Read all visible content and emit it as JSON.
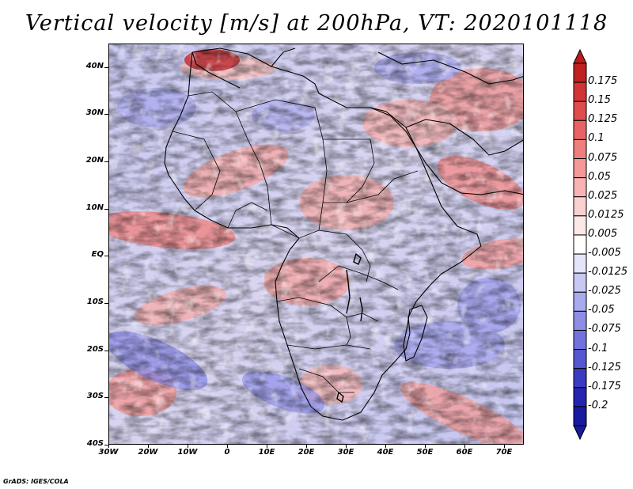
{
  "title": "Vertical velocity [m/s] at 200hPa, VT: 2020101118",
  "credit": "GrADS: IGES/COLA",
  "axes": {
    "lat_labels": [
      "40N",
      "30N",
      "20N",
      "10N",
      "EQ",
      "10S",
      "20S",
      "30S",
      "40S"
    ],
    "lon_labels": [
      "30W",
      "20W",
      "10W",
      "0",
      "10E",
      "20E",
      "30E",
      "40E",
      "50E",
      "60E",
      "70E"
    ],
    "lat_range": [
      -40,
      45
    ],
    "lon_range": [
      -30,
      75
    ]
  },
  "colorbar": {
    "labels": [
      "0.175",
      "0.15",
      "0.125",
      "0.1",
      "0.075",
      "0.05",
      "0.025",
      "0.0125",
      "0.005",
      "-0.005",
      "-0.0125",
      "-0.025",
      "-0.05",
      "-0.075",
      "-0.1",
      "-0.125",
      "-0.175",
      "-0.2"
    ],
    "colors": [
      "#c02020",
      "#d23434",
      "#de4c4c",
      "#e86464",
      "#ef7e7e",
      "#f49898",
      "#f8b4b4",
      "#fbd0d0",
      "#fde8e8",
      "#ffffff",
      "#e4e4fb",
      "#c8c8f5",
      "#aaaaee",
      "#8e8ee6",
      "#7272dc",
      "#5656d0",
      "#3a3ac2",
      "#2424b0",
      "#1a1aa0"
    ],
    "top_arrow_color": "#b81c1c",
    "bottom_arrow_color": "#1a1a9a"
  },
  "map": {
    "background_field": "mixed red/blue vertical velocity filaments",
    "coastline_color": "#000000",
    "contour_line_color": "#ffffff"
  }
}
